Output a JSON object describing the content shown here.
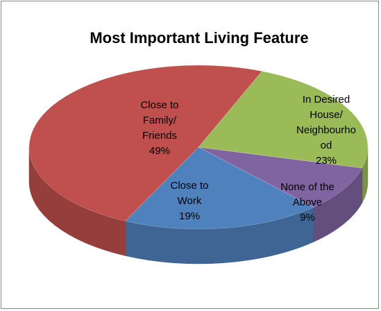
{
  "chart_data": {
    "type": "pie",
    "title": "Most Important Living Feature",
    "categories": [
      "In Desired House/ Neighbourhood",
      "None of the Above",
      "Close to Work",
      "Close to Family/ Friends"
    ],
    "values": [
      23,
      9,
      19,
      49
    ],
    "value_labels": [
      "23%",
      "9%",
      "19%",
      "49%"
    ],
    "colors": [
      "#9bbb59",
      "#8064a2",
      "#4f81bd",
      "#c0504d"
    ],
    "three_d": true
  }
}
